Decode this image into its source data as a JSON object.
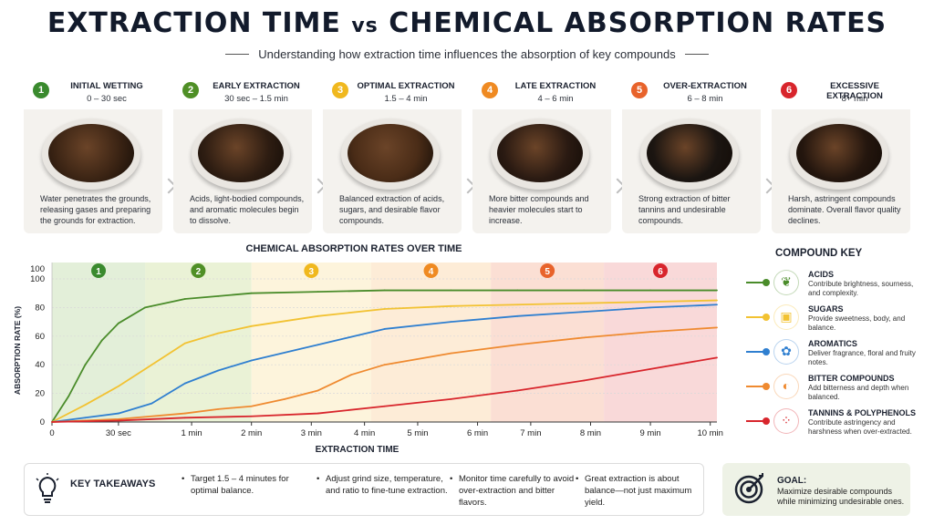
{
  "header": {
    "title_main": "EXTRACTION TIME ",
    "title_vs": "vs",
    "title_end": " CHEMICAL ABSORPTION RATES",
    "subtitle": "Understanding how extraction time influences the absorption of key compounds"
  },
  "stages": [
    {
      "num": "1",
      "name": "INITIAL WETTING",
      "time": "0 – 30 sec",
      "color": "#3a8a2e",
      "coffee": "#3b2414",
      "desc": "Water penetrates the grounds, releasing gases and preparing the grounds for extraction."
    },
    {
      "num": "2",
      "name": "EARLY EXTRACTION",
      "time": "30 sec – 1.5 min",
      "color": "#4f8f26",
      "coffee": "#2e1d12",
      "desc": "Acids, light-bodied compounds, and aromatic molecules begin to dissolve."
    },
    {
      "num": "3",
      "name": "OPTIMAL EXTRACTION",
      "time": "1.5 – 4 min",
      "color": "#f0b81e",
      "coffee": "#4a2c17",
      "desc": "Balanced extraction of acids, sugars, and desirable flavor compounds."
    },
    {
      "num": "4",
      "name": "LATE EXTRACTION",
      "time": "4 – 6 min",
      "color": "#ef8a22",
      "coffee": "#2a1a12",
      "desc": "More bitter compounds and heavier molecules start to increase."
    },
    {
      "num": "5",
      "name": "OVER-EXTRACTION",
      "time": "6 – 8 min",
      "color": "#e8632b",
      "coffee": "#1b1511",
      "desc": "Strong extraction of bitter tannins and undesirable compounds."
    },
    {
      "num": "6",
      "name": "EXCESSIVE EXTRACTION",
      "time": "8+ min",
      "color": "#d8252c",
      "coffee": "#24160e",
      "desc": "Harsh, astringent compounds dominate. Overall flavor quality declines."
    }
  ],
  "chart_data": {
    "type": "line",
    "title": "CHEMICAL ABSORPTION RATES OVER TIME",
    "xlabel": "EXTRACTION TIME",
    "ylabel": "ABSORPTION RATE (%)",
    "xlim": [
      0,
      10
    ],
    "ylim": [
      0,
      100
    ],
    "x_ticks": [
      {
        "value": 0,
        "label": "0"
      },
      {
        "value": 1,
        "label": "30 sec"
      },
      {
        "value": 2.1,
        "label": "1 min"
      },
      {
        "value": 3,
        "label": "2 min"
      },
      {
        "value": 3.9,
        "label": "3 min"
      },
      {
        "value": 4.7,
        "label": "4 min"
      },
      {
        "value": 5.5,
        "label": "5 min"
      },
      {
        "value": 6.4,
        "label": "6 min"
      },
      {
        "value": 7.2,
        "label": "7 min"
      },
      {
        "value": 8.1,
        "label": "8 min"
      },
      {
        "value": 9,
        "label": "9 min"
      },
      {
        "value": 9.9,
        "label": "10 min"
      }
    ],
    "y_ticks": [
      0,
      20,
      40,
      60,
      80,
      100
    ],
    "y_top_label": "100",
    "stage_bands": [
      {
        "label": "1",
        "from": 0,
        "to": 1.4,
        "color": "#e3efd9",
        "badge": "#3a8a2e"
      },
      {
        "label": "2",
        "from": 1.4,
        "to": 3,
        "color": "#eaf2d6",
        "badge": "#4f8f26"
      },
      {
        "label": "3",
        "from": 3,
        "to": 4.8,
        "color": "#fdf4dc",
        "badge": "#f0b81e"
      },
      {
        "label": "4",
        "from": 4.8,
        "to": 6.6,
        "color": "#fdecd7",
        "badge": "#ef8a22"
      },
      {
        "label": "5",
        "from": 6.6,
        "to": 8.3,
        "color": "#fbdfd4",
        "badge": "#e8632b"
      },
      {
        "label": "6",
        "from": 8.3,
        "to": 10,
        "color": "#f9d9d9",
        "badge": "#d8252c"
      }
    ],
    "series": [
      {
        "name": "ACIDS",
        "color": "#4a8c2a",
        "x": [
          0,
          0.25,
          0.5,
          0.75,
          1,
          1.4,
          2,
          2.5,
          3,
          4,
          5,
          6,
          7,
          8,
          9,
          10
        ],
        "y": [
          0,
          18,
          40,
          57,
          69,
          80,
          86,
          88,
          90,
          91,
          92,
          92,
          92,
          92,
          92,
          92
        ]
      },
      {
        "name": "SUGARS",
        "color": "#f2c232",
        "x": [
          0,
          0.5,
          1,
          1.5,
          2,
          2.5,
          3,
          4,
          5,
          6,
          7,
          8,
          9,
          10
        ],
        "y": [
          0,
          12,
          25,
          40,
          55,
          62,
          67,
          74,
          79,
          81,
          82,
          83,
          84,
          85
        ]
      },
      {
        "name": "AROMATICS",
        "color": "#2f7fd0",
        "x": [
          0,
          0.5,
          1,
          1.5,
          2,
          2.5,
          3,
          4,
          5,
          6,
          7,
          8,
          9,
          10
        ],
        "y": [
          0,
          3,
          6,
          13,
          27,
          36,
          43,
          54,
          65,
          70,
          74,
          77,
          80,
          82
        ]
      },
      {
        "name": "BITTER COMPOUNDS",
        "color": "#ef8a30",
        "x": [
          0,
          1,
          2,
          2.5,
          3,
          3.5,
          4,
          4.5,
          5,
          6,
          7,
          8,
          9,
          10
        ],
        "y": [
          0,
          2,
          6,
          9,
          11,
          16,
          22,
          33,
          40,
          48,
          54,
          59,
          63,
          66
        ]
      },
      {
        "name": "TANNINS & POLYPHENOLS",
        "color": "#d8252c",
        "x": [
          0,
          1,
          2,
          3,
          4,
          5,
          6,
          7,
          8,
          9,
          10
        ],
        "y": [
          0,
          1,
          3,
          4,
          6,
          11,
          16,
          22,
          29,
          37,
          45
        ]
      }
    ],
    "legend_position": "right"
  },
  "key": {
    "title": "COMPOUND KEY",
    "items": [
      {
        "name": "ACIDS",
        "desc": "Contribute brightness, sourness, and complexity.",
        "color": "#4a8c2a",
        "icon": "leaf-icon",
        "glyph": "❦"
      },
      {
        "name": "SUGARS",
        "desc": "Provide sweetness, body, and balance.",
        "color": "#f2c232",
        "icon": "cube-icon",
        "glyph": "▣"
      },
      {
        "name": "AROMATICS",
        "desc": "Deliver fragrance, floral and fruity notes.",
        "color": "#2f7fd0",
        "icon": "flower-icon",
        "glyph": "✿"
      },
      {
        "name": "BITTER COMPOUNDS",
        "desc": "Add bitterness and depth when balanced.",
        "color": "#ef8a30",
        "icon": "coffee-bean-icon",
        "glyph": "◐"
      },
      {
        "name": "TANNINS & POLYPHENOLS",
        "desc": "Contribute astringency and harshness when over-extracted.",
        "color": "#d8252c",
        "icon": "molecule-icon",
        "glyph": "⁘"
      }
    ]
  },
  "takeaways": {
    "title": "KEY TAKEAWAYS",
    "items": [
      {
        "lead": "Target 1.5 – 4 minutes",
        "rest": "for optimal balance."
      },
      {
        "lead": "Adjust grind size, temperature, and ratio",
        "rest": "to fine-tune extraction."
      },
      {
        "lead": "Monitor time carefully to avoid over-extraction",
        "rest": "and bitter flavors."
      },
      {
        "lead": "Great extraction is about balance—not just",
        "rest": "maximum yield."
      }
    ]
  },
  "goal": {
    "title": "GOAL:",
    "text": "Maximize desirable compounds while minimizing undesirable ones."
  }
}
